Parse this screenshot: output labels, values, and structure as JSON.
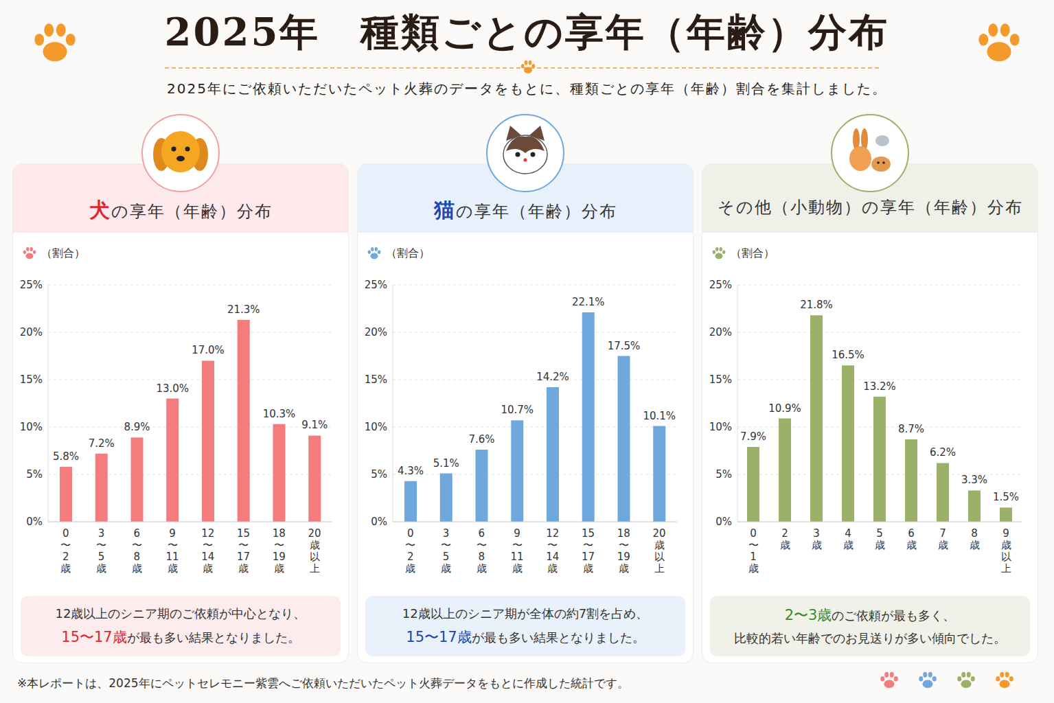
{
  "header": {
    "title": "2025年　種類ごとの享年（年齢）分布",
    "subtitle": "2025年にご依頼いただいたペット火葬のデータをもとに、種類ごとの享年（年齢）割合を集計しました。"
  },
  "chart_data": [
    {
      "type": "bar",
      "title": [
        "犬",
        "の享年（年齢）分布"
      ],
      "ylabel": "（割合）",
      "categories": [
        "0〜2歳",
        "3〜5歳",
        "6〜8歳",
        "9〜11歳",
        "12〜14歳",
        "15〜17歳",
        "18〜19歳",
        "20歳以上"
      ],
      "values": [
        5.8,
        7.2,
        8.9,
        13.0,
        17.0,
        21.3,
        10.3,
        9.1
      ],
      "value_labels": [
        "5.8%",
        "7.2%",
        "8.9%",
        "13.0%",
        "17.0%",
        "21.3%",
        "10.3%",
        "9.1%"
      ],
      "color": "#f47c7c",
      "ylim": [
        0,
        25
      ],
      "yticks": [
        {
          "value": 0,
          "label": "0%"
        },
        {
          "value": 5,
          "label": "5%"
        },
        {
          "value": 10,
          "label": "10%"
        },
        {
          "value": 15,
          "label": "15%"
        },
        {
          "value": 20,
          "label": "20%"
        },
        {
          "value": 25,
          "label": "25%"
        }
      ],
      "grid": true,
      "data_labels": true,
      "annotations": [
        [
          "12歳以上のシニア期のご依頼が中心となり、"
        ],
        [
          "15〜17歳",
          "が最も多い結果となりました。"
        ]
      ]
    },
    {
      "type": "bar",
      "title": [
        "猫",
        "の享年（年齢）分布"
      ],
      "ylabel": "（割合）",
      "categories": [
        "0〜2歳",
        "3〜5歳",
        "6〜8歳",
        "9〜11歳",
        "12〜14歳",
        "15〜17歳",
        "18〜19歳",
        "20歳以上"
      ],
      "values": [
        4.3,
        5.1,
        7.6,
        10.7,
        14.2,
        22.1,
        17.5,
        10.1
      ],
      "value_labels": [
        "4.3%",
        "5.1%",
        "7.6%",
        "10.7%",
        "14.2%",
        "22.1%",
        "17.5%",
        "10.1%"
      ],
      "color": "#6fa8dc",
      "ylim": [
        0,
        25
      ],
      "yticks": [
        {
          "value": 0,
          "label": "0%"
        },
        {
          "value": 5,
          "label": "5%"
        },
        {
          "value": 10,
          "label": "10%"
        },
        {
          "value": 15,
          "label": "15%"
        },
        {
          "value": 20,
          "label": "20%"
        },
        {
          "value": 25,
          "label": "25%"
        }
      ],
      "grid": true,
      "data_labels": true,
      "annotations": [
        [
          "12歳以上のシニア期が全体の約7割を占め、"
        ],
        [
          "15〜17歳",
          "が最も多い結果となりました。"
        ]
      ]
    },
    {
      "type": "bar",
      "title": [
        "その他（小動物）の享年（年齢）分布"
      ],
      "ylabel": "（割合）",
      "categories": [
        "0〜1歳",
        "2歳",
        "3歳",
        "4歳",
        "5歳",
        "6歳",
        "7歳",
        "8歳",
        "9歳以上"
      ],
      "values": [
        7.9,
        10.9,
        21.8,
        16.5,
        13.2,
        8.7,
        6.2,
        3.3,
        1.5
      ],
      "value_labels": [
        "7.9%",
        "10.9%",
        "21.8%",
        "16.5%",
        "13.2%",
        "8.7%",
        "6.2%",
        "3.3%",
        "1.5%"
      ],
      "color": "#9bb068",
      "ylim": [
        0,
        25
      ],
      "yticks": [
        {
          "value": 0,
          "label": "0%"
        },
        {
          "value": 5,
          "label": "5%"
        },
        {
          "value": 10,
          "label": "10%"
        },
        {
          "value": 15,
          "label": "15%"
        },
        {
          "value": 20,
          "label": "20%"
        },
        {
          "value": 25,
          "label": "25%"
        }
      ],
      "grid": true,
      "data_labels": true,
      "annotations": [
        [
          "2〜3歳",
          "のご依頼が最も多く、"
        ],
        [
          "比較的若い年齢でのお見送りが多い傾向でした。"
        ]
      ]
    }
  ],
  "footnote": "※本レポートは、2025年にペットセレモニー紫雲へご依頼いただいたペット火葬データをもとに作成した統計です。"
}
